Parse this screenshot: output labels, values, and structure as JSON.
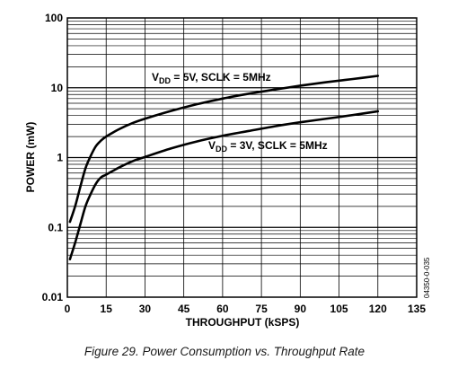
{
  "chart_data": {
    "type": "line",
    "xlabel": "THROUGHPUT (kSPS)",
    "ylabel": "POWER (mW)",
    "xlim": [
      0,
      135
    ],
    "ylim": [
      0.01,
      100
    ],
    "y_scale": "log",
    "x_ticks": [
      "0",
      "15",
      "30",
      "45",
      "60",
      "75",
      "90",
      "105",
      "120",
      "135"
    ],
    "x_tick_values": [
      0,
      15,
      30,
      45,
      60,
      75,
      90,
      105,
      120,
      135
    ],
    "y_ticks": [
      "0.01",
      "0.1",
      "1",
      "10",
      "100"
    ],
    "y_tick_values": [
      0.01,
      0.1,
      1,
      10,
      100
    ],
    "grid": true,
    "series": [
      {
        "name": "VDD = 5V, SCLK = 5MHz",
        "x": [
          1,
          3,
          5,
          7,
          9,
          11,
          13,
          15,
          20,
          25,
          30,
          40,
          50,
          60,
          70,
          80,
          90,
          100,
          110,
          120
        ],
        "y": [
          0.12,
          0.2,
          0.38,
          0.7,
          1.05,
          1.45,
          1.75,
          2.0,
          2.55,
          3.1,
          3.6,
          4.65,
          5.8,
          7.0,
          8.2,
          9.4,
          10.7,
          12.0,
          13.3,
          14.8
        ]
      },
      {
        "name": "VDD = 3V, SCLK = 5MHz",
        "x": [
          1,
          3,
          5,
          7,
          9,
          11,
          13,
          15,
          20,
          25,
          30,
          40,
          50,
          60,
          70,
          80,
          90,
          100,
          110,
          120
        ],
        "y": [
          0.035,
          0.06,
          0.11,
          0.2,
          0.3,
          0.42,
          0.52,
          0.57,
          0.72,
          0.88,
          1.02,
          1.35,
          1.7,
          2.05,
          2.4,
          2.8,
          3.2,
          3.6,
          4.05,
          4.6
        ]
      }
    ],
    "annotations": [
      {
        "main": "V",
        "sub": "DD",
        "rest": " = 5V, SCLK = 5MHz"
      },
      {
        "main": "V",
        "sub": "DD",
        "rest": " = 3V, SCLK = 5MHz"
      }
    ],
    "figure_code": "04350-0-035"
  },
  "caption": "Figure 29. Power Consumption vs. Throughput Rate"
}
